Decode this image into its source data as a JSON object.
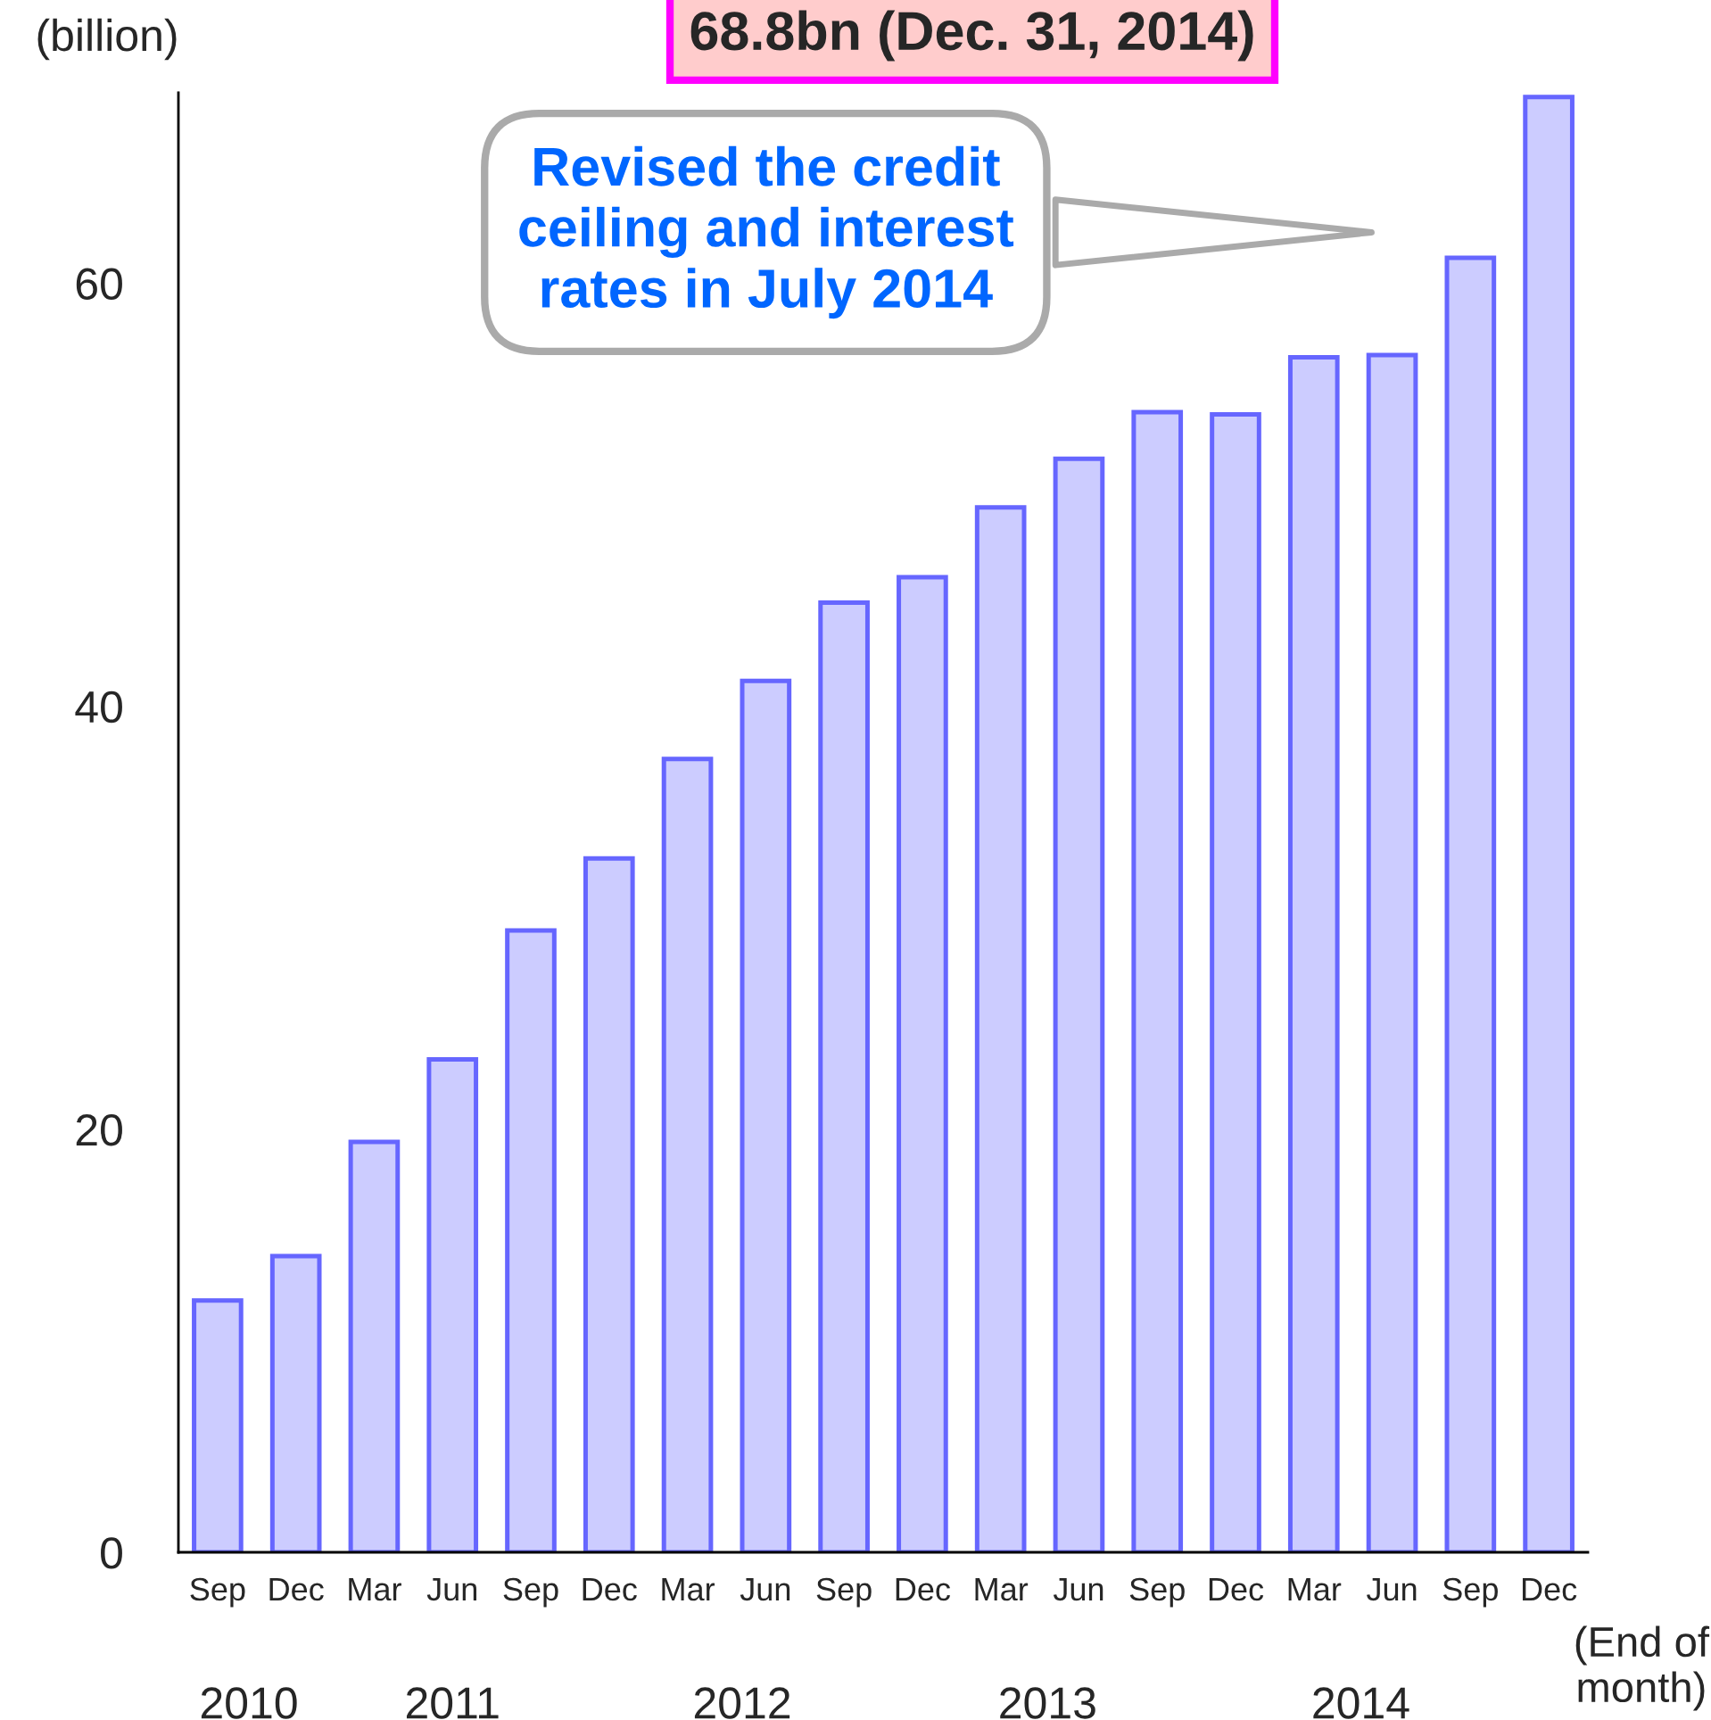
{
  "chart_data": {
    "type": "bar",
    "title": "68.8bn (Dec. 31, 2014)",
    "ylabel": "(billion)",
    "xlabel": "(End of\nmonth)",
    "categories": [
      "Sep",
      "Dec",
      "Mar",
      "Jun",
      "Sep",
      "Dec",
      "Mar",
      "Jun",
      "Sep",
      "Dec",
      "Mar",
      "Jun",
      "Sep",
      "Dec",
      "Mar",
      "Jun",
      "Sep",
      "Dec"
    ],
    "values": [
      11.9,
      14.0,
      19.4,
      23.3,
      29.4,
      32.8,
      37.5,
      41.2,
      44.9,
      46.1,
      49.4,
      51.7,
      53.9,
      53.8,
      56.5,
      56.6,
      61.2,
      68.8
    ],
    "color": "#ccccff",
    "ylim": [
      0,
      69
    ],
    "yticks": [
      0,
      20,
      40,
      60
    ],
    "grid": false,
    "legend": false,
    "annotations": [
      "2010",
      "2011",
      "2012",
      "2013",
      "2014",
      "Revised the credit\nceiling and interest\nrates in July 2014"
    ]
  }
}
